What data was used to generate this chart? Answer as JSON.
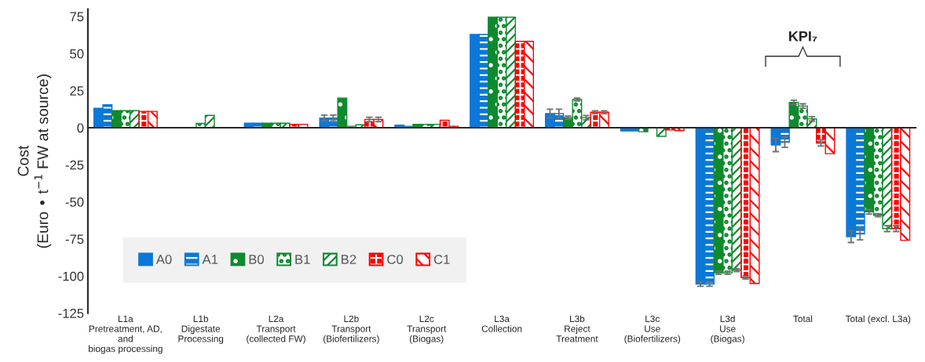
{
  "chart_data": {
    "type": "bar",
    "ylabel": "Cost\n(Euro • t$^{−1}$ FW at source)",
    "categories": [
      "L1a\nPretreatment, AD,\nand\nbiogas processing",
      "L1b\nDigestate\nProcessing",
      "L2a\nTransport\n(collected FW)",
      "L2b\nTransport\n(Biofertilizers)",
      "L2c\nTransport\n(Biogas)",
      "L3a\nCollection",
      "L3b\nReject\nTreatment",
      "L3c\nUse\n(Biofertilizers)",
      "L3d\nUse\n(Biogas)",
      "Total",
      "Total (excl. L3a)"
    ],
    "series": [
      {
        "name": "A0",
        "color": "#0b78d8",
        "values": [
          13.1,
          0,
          3,
          6.5,
          1.8,
          62.9,
          9.5,
          -2.2,
          -105.4,
          -11.6,
          -73.4
        ],
        "errors": [
          null,
          null,
          null,
          2,
          null,
          null,
          3,
          null,
          1.5,
          4.5,
          4
        ]
      },
      {
        "name": "A1",
        "color": "#0b78d8",
        "values": [
          15.5,
          0,
          3,
          6.5,
          1,
          62.9,
          9.5,
          -2.2,
          -105.4,
          -9.8,
          -71.6
        ],
        "errors": [
          null,
          null,
          null,
          2,
          null,
          null,
          3,
          null,
          1.5,
          3.5,
          4
        ]
      },
      {
        "name": "B0",
        "color": "#0e8a2e",
        "values": [
          11.5,
          0,
          3,
          20,
          2.3,
          74.5,
          6.8,
          -2.7,
          -97.8,
          17.1,
          -56.7
        ],
        "errors": [
          null,
          null,
          null,
          null,
          null,
          null,
          1,
          null,
          1,
          1.5,
          1.5
        ]
      },
      {
        "name": "B1",
        "color": "#0e8a2e",
        "values": [
          11.5,
          2.9,
          3,
          1,
          2.3,
          74.5,
          19,
          null,
          -97.8,
          14.6,
          -59
        ],
        "errors": [
          null,
          null,
          null,
          null,
          null,
          null,
          1,
          null,
          1,
          1.5,
          1
        ]
      },
      {
        "name": "B2",
        "color": "#0e8a2e",
        "values": [
          11.5,
          8.3,
          3,
          2,
          2.3,
          74.5,
          6.8,
          -5.8,
          -96,
          6,
          -68
        ],
        "errors": [
          null,
          null,
          null,
          null,
          null,
          null,
          1.5,
          null,
          1,
          1.5,
          2
        ]
      },
      {
        "name": "C0",
        "color": "#ff0000",
        "values": [
          11,
          0,
          2.3,
          5.6,
          5,
          58.2,
          10.4,
          -1.5,
          -101,
          -10.3,
          -68
        ],
        "errors": [
          null,
          null,
          null,
          1.5,
          null,
          null,
          1,
          null,
          1,
          2,
          2
        ]
      },
      {
        "name": "C1",
        "color": "#ff0000",
        "values": [
          11,
          0,
          2.3,
          5.6,
          1,
          58.2,
          10.4,
          -2,
          -105,
          -17.5,
          -75.9
        ],
        "errors": [
          null,
          null,
          null,
          1.5,
          null,
          null,
          1,
          null,
          null,
          null,
          null
        ]
      }
    ],
    "ylim": [
      -125,
      80
    ],
    "yticks": [
      -125,
      -100,
      -75,
      -50,
      -25,
      0,
      25,
      50,
      75
    ],
    "annotations": [
      "KPI₇"
    ],
    "ref_lines": [
      {
        "axis": "y",
        "value": 0
      }
    ],
    "legend": "bottom left",
    "grid": false
  }
}
